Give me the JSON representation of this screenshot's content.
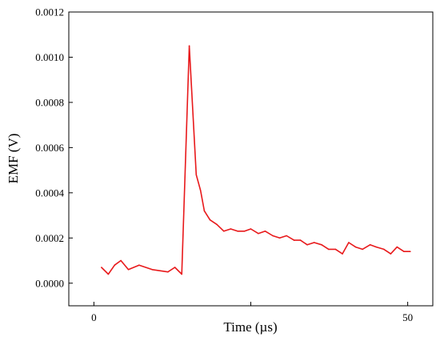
{
  "chart_data": {
    "type": "line",
    "xlabel": "Time (µs)",
    "ylabel": "EMF (V)",
    "xlim": [
      -4,
      54
    ],
    "ylim": [
      -0.0001,
      0.0012
    ],
    "xticks": [
      0,
      50
    ],
    "xtick_labels": [
      "0",
      "50"
    ],
    "xticks_unlabeled": [
      25
    ],
    "yticks": [
      0.0,
      0.0002,
      0.0004,
      0.0006,
      0.0008,
      0.001,
      0.0012
    ],
    "ytick_labels": [
      "0.0000",
      "0.0002",
      "0.0004",
      "0.0006",
      "0.0008",
      "0.0010",
      "0.0012"
    ],
    "grid": false,
    "legend": "none",
    "series": [
      {
        "color": "#e8191b",
        "x": [
          1.2,
          2.3,
          3.3,
          4.3,
          5.5,
          7.2,
          9.3,
          11.8,
          12.9,
          14.0,
          15.2,
          16.3,
          17.0,
          17.6,
          18.5,
          19.6,
          20.7,
          21.8,
          22.9,
          24.0,
          25.0,
          26.2,
          27.3,
          28.5,
          29.6,
          30.7,
          31.9,
          32.9,
          34.0,
          35.1,
          36.3,
          37.4,
          38.5,
          39.6,
          40.6,
          41.7,
          42.8,
          44.0,
          45.0,
          46.2,
          47.3,
          48.3,
          49.4,
          50.4
        ],
        "y": [
          7e-05,
          4e-05,
          8e-05,
          0.0001,
          6e-05,
          8e-05,
          6e-05,
          5e-05,
          7e-05,
          4e-05,
          0.00105,
          0.00048,
          0.00041,
          0.00032,
          0.00028,
          0.00026,
          0.00023,
          0.00024,
          0.00023,
          0.00023,
          0.00024,
          0.00022,
          0.00023,
          0.00021,
          0.0002,
          0.00021,
          0.00019,
          0.00019,
          0.00017,
          0.00018,
          0.00017,
          0.00015,
          0.00015,
          0.00013,
          0.00018,
          0.00016,
          0.00015,
          0.00017,
          0.00016,
          0.00015,
          0.00013,
          0.00016,
          0.00014,
          0.00014
        ]
      }
    ]
  }
}
